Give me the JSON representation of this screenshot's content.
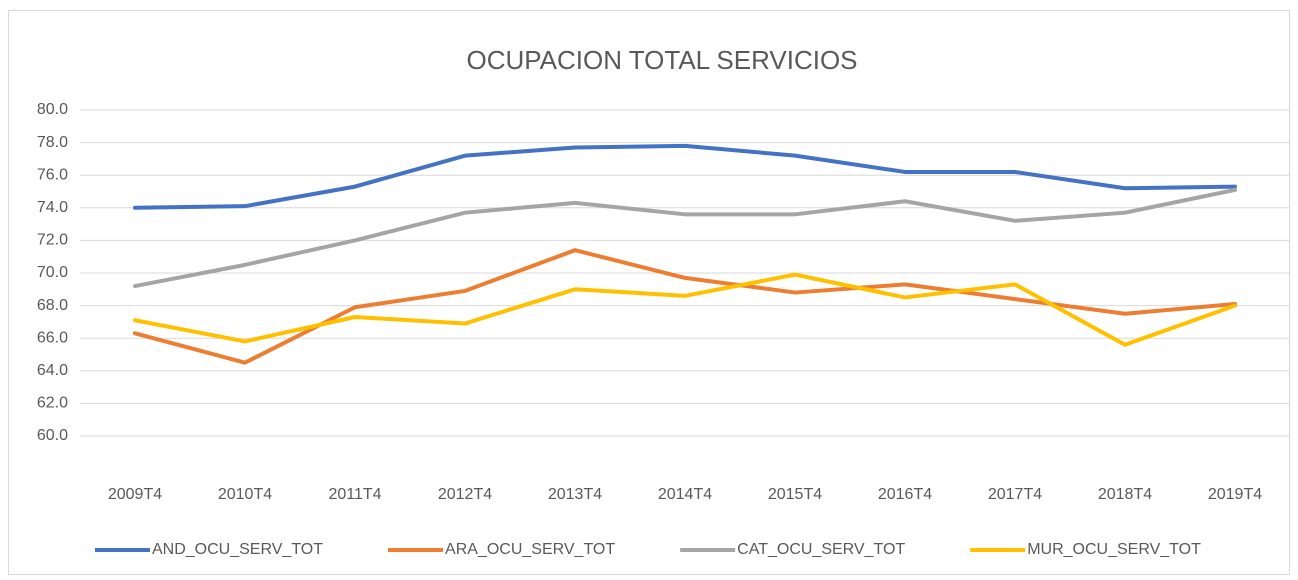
{
  "chart_data": {
    "type": "line",
    "title": "OCUPACION TOTAL SERVICIOS",
    "categories": [
      "2009T4",
      "2010T4",
      "2011T4",
      "2012T4",
      "2013T4",
      "2014T4",
      "2015T4",
      "2016T4",
      "2017T4",
      "2018T4",
      "2019T4"
    ],
    "series": [
      {
        "name": "AND_OCU_SERV_TOT",
        "color": "#4472c4",
        "values": [
          74.0,
          74.1,
          75.3,
          77.2,
          77.7,
          77.8,
          77.2,
          76.2,
          76.2,
          75.2,
          75.3
        ]
      },
      {
        "name": "ARA_OCU_SERV_TOT",
        "color": "#ed7d31",
        "values": [
          66.3,
          64.5,
          67.9,
          68.9,
          71.4,
          69.7,
          68.8,
          69.3,
          68.4,
          67.5,
          68.1
        ]
      },
      {
        "name": "CAT_OCU_SERV_TOT",
        "color": "#a5a5a5",
        "values": [
          69.2,
          70.5,
          72.0,
          73.7,
          74.3,
          73.6,
          73.6,
          74.4,
          73.2,
          73.7,
          75.1
        ]
      },
      {
        "name": "MUR_OCU_SERV_TOT",
        "color": "#ffc000",
        "values": [
          67.1,
          65.8,
          67.3,
          66.9,
          69.0,
          68.6,
          69.9,
          68.5,
          69.3,
          65.6,
          68.0
        ]
      }
    ],
    "ylim": [
      60,
      80
    ],
    "yticks": [
      {
        "value": 60,
        "label": "60.0"
      },
      {
        "value": 62,
        "label": "62.0"
      },
      {
        "value": 64,
        "label": "64.0"
      },
      {
        "value": 66,
        "label": "66.0"
      },
      {
        "value": 68,
        "label": "68.0"
      },
      {
        "value": 70,
        "label": "70.0"
      },
      {
        "value": 72,
        "label": "72.0"
      },
      {
        "value": 74,
        "label": "74.0"
      },
      {
        "value": 76,
        "label": "76.0"
      },
      {
        "value": 78,
        "label": "78.0"
      },
      {
        "value": 80,
        "label": "80.0"
      }
    ],
    "grid": true,
    "legend": "bottom"
  }
}
